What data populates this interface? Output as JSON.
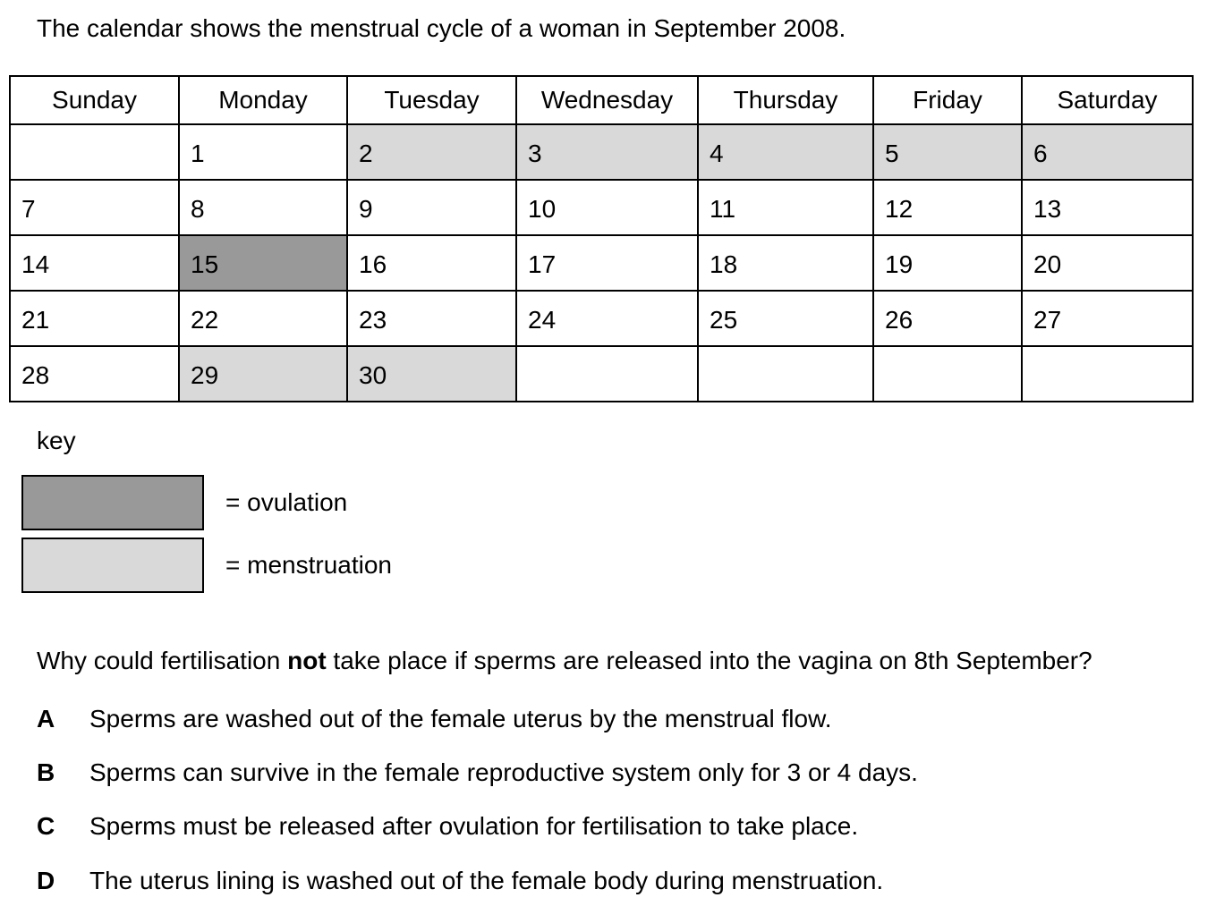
{
  "intro": "The calendar shows the menstrual cycle of a woman in September 2008.",
  "calendar": {
    "days": [
      "Sunday",
      "Monday",
      "Tuesday",
      "Wednesday",
      "Thursday",
      "Friday",
      "Saturday"
    ],
    "weeks": [
      [
        {
          "d": "",
          "s": ""
        },
        {
          "d": "1",
          "s": ""
        },
        {
          "d": "2",
          "s": "menstruation"
        },
        {
          "d": "3",
          "s": "menstruation"
        },
        {
          "d": "4",
          "s": "menstruation"
        },
        {
          "d": "5",
          "s": "menstruation"
        },
        {
          "d": "6",
          "s": "menstruation"
        }
      ],
      [
        {
          "d": "7",
          "s": ""
        },
        {
          "d": "8",
          "s": ""
        },
        {
          "d": "9",
          "s": ""
        },
        {
          "d": "10",
          "s": ""
        },
        {
          "d": "11",
          "s": ""
        },
        {
          "d": "12",
          "s": ""
        },
        {
          "d": "13",
          "s": ""
        }
      ],
      [
        {
          "d": "14",
          "s": ""
        },
        {
          "d": "15",
          "s": "ovulation"
        },
        {
          "d": "16",
          "s": ""
        },
        {
          "d": "17",
          "s": ""
        },
        {
          "d": "18",
          "s": ""
        },
        {
          "d": "19",
          "s": ""
        },
        {
          "d": "20",
          "s": ""
        }
      ],
      [
        {
          "d": "21",
          "s": ""
        },
        {
          "d": "22",
          "s": ""
        },
        {
          "d": "23",
          "s": ""
        },
        {
          "d": "24",
          "s": ""
        },
        {
          "d": "25",
          "s": ""
        },
        {
          "d": "26",
          "s": ""
        },
        {
          "d": "27",
          "s": ""
        }
      ],
      [
        {
          "d": "28",
          "s": ""
        },
        {
          "d": "29",
          "s": "menstruation"
        },
        {
          "d": "30",
          "s": "menstruation"
        },
        {
          "d": "",
          "s": ""
        },
        {
          "d": "",
          "s": ""
        },
        {
          "d": "",
          "s": ""
        },
        {
          "d": "",
          "s": ""
        }
      ]
    ]
  },
  "key": {
    "label": "key",
    "ovulation": "= ovulation",
    "menstruation": "= menstruation",
    "colors": {
      "ovulation": "#999999",
      "menstruation": "#d9d9d9"
    }
  },
  "question": {
    "before": "Why could fertilisation ",
    "emphasis": "not",
    "after": " take place if sperms are released into the vagina on 8th September?"
  },
  "options": [
    {
      "letter": "A",
      "text": "Sperms are washed out of the female uterus by the menstrual flow."
    },
    {
      "letter": "B",
      "text": "Sperms can survive in the female reproductive system only for 3 or 4 days."
    },
    {
      "letter": "C",
      "text": "Sperms must be released after ovulation for fertilisation to take place."
    },
    {
      "letter": "D",
      "text": "The uterus lining is washed out of the female body during menstruation."
    }
  ]
}
